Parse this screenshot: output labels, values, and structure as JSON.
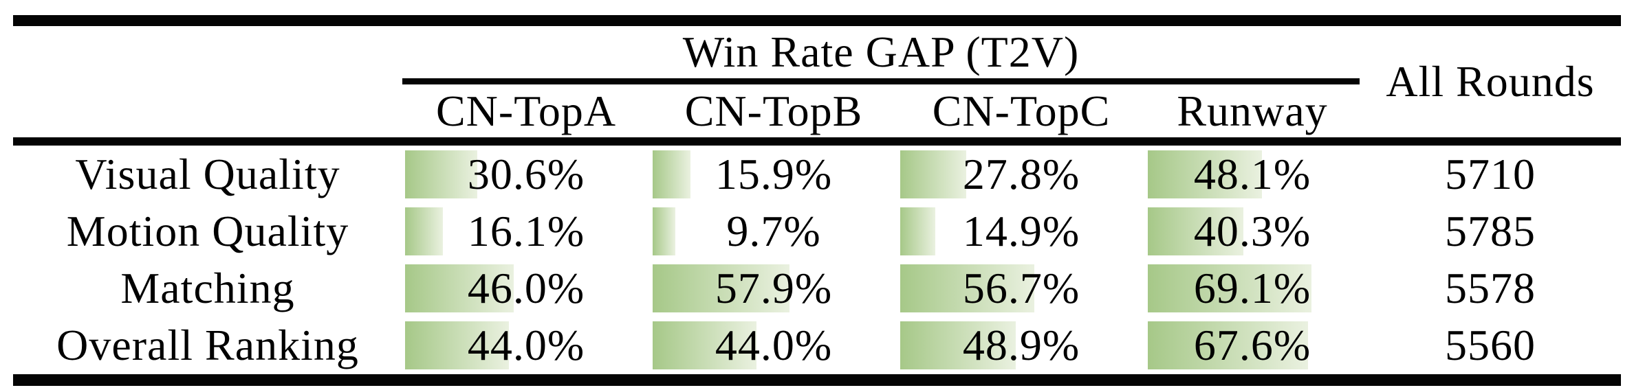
{
  "table": {
    "title": "Win Rate GAP (T2V)",
    "all_rounds_header": "All Rounds",
    "columns": [
      "CN-TopA",
      "CN-TopB",
      "CN-TopC",
      "Runway"
    ],
    "rows": [
      {
        "label": "Visual Quality",
        "values": [
          30.6,
          15.9,
          27.8,
          48.1
        ],
        "display": [
          "30.6%",
          "15.9%",
          "27.8%",
          "48.1%"
        ],
        "all_rounds": "5710"
      },
      {
        "label": "Motion Quality",
        "values": [
          16.1,
          9.7,
          14.9,
          40.3
        ],
        "display": [
          "16.1%",
          "9.7%",
          "14.9%",
          "40.3%"
        ],
        "all_rounds": "5785"
      },
      {
        "label": "Matching",
        "values": [
          46.0,
          57.9,
          56.7,
          69.1
        ],
        "display": [
          "46.0%",
          "57.9%",
          "56.7%",
          "69.1%"
        ],
        "all_rounds": "5578"
      },
      {
        "label": "Overall Ranking",
        "values": [
          44.0,
          44.0,
          48.9,
          67.6
        ],
        "display": [
          "44.0%",
          "44.0%",
          "48.9%",
          "67.6%"
        ],
        "all_rounds": "5560"
      }
    ],
    "bar_gradient": {
      "from": "#a6c888",
      "to": "#eaf1e0"
    },
    "rule_color": "#040404"
  },
  "chart_data": {
    "type": "table",
    "title": "Win Rate GAP (T2V)",
    "categories": [
      "Visual Quality",
      "Motion Quality",
      "Matching",
      "Overall Ranking"
    ],
    "series": [
      {
        "name": "CN-TopA",
        "values": [
          30.6,
          16.1,
          46.0,
          44.0
        ]
      },
      {
        "name": "CN-TopB",
        "values": [
          15.9,
          9.7,
          57.9,
          44.0
        ]
      },
      {
        "name": "CN-TopC",
        "values": [
          27.8,
          14.9,
          56.7,
          48.9
        ]
      },
      {
        "name": "Runway",
        "values": [
          48.1,
          40.3,
          69.1,
          67.6
        ]
      },
      {
        "name": "All Rounds",
        "values": [
          5710,
          5785,
          5578,
          5560
        ]
      }
    ],
    "value_unit": "%",
    "bar_scale_note": "in-cell data bars, 100% = full column width"
  }
}
